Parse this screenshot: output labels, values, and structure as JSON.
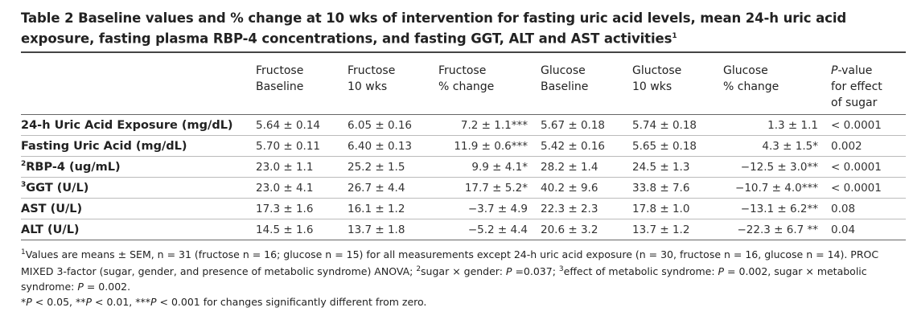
{
  "title": {
    "text": "Table 2 Baseline values and % change at 10 wks of intervention for fasting uric acid levels, mean 24-h uric acid exposure, fasting plasma RBP-4 concentrations, and fasting GGT, ALT and AST activities",
    "note": "1"
  },
  "table": {
    "headers": [
      [
        "Fructose",
        "Baseline"
      ],
      [
        "Fructose",
        "10 wks"
      ],
      [
        "Fructose",
        "% change"
      ],
      [
        "Glucose",
        "Baseline"
      ],
      [
        "Gluctose",
        "10 wks"
      ],
      [
        "Glucose",
        "% change"
      ],
      [
        "P-value",
        "for effect",
        "of sugar"
      ]
    ],
    "rows": [
      {
        "label": "24-h Uric Acid Exposure (mg/dL)",
        "cells": [
          "5.64 ± 0.14",
          "6.05 ± 0.16",
          "7.2 ± 1.1***",
          "5.67 ± 0.18",
          "5.74 ± 0.18",
          "1.3 ± 1.1",
          "< 0.0001"
        ]
      },
      {
        "label": "Fasting Uric Acid (mg/dL)",
        "cells": [
          "5.70 ± 0.11",
          "6.40 ± 0.13",
          "11.9 ± 0.6***",
          "5.42 ± 0.16",
          "5.65 ± 0.18",
          "4.3 ± 1.5*",
          "0.002"
        ]
      },
      {
        "note": "2",
        "label": "RBP-4 (ug/mL)",
        "cells": [
          "23.0 ± 1.1",
          "25.2 ± 1.5",
          "9.9 ± 4.1*",
          "28.2 ± 1.4",
          "24.5 ± 1.3",
          "−12.5 ± 3.0**",
          "< 0.0001"
        ]
      },
      {
        "note": "3",
        "label": "GGT (U/L)",
        "cells": [
          "23.0 ± 4.1",
          "26.7 ± 4.4",
          "17.7 ± 5.2*",
          "40.2 ± 9.6",
          "33.8 ± 7.6",
          "−10.7 ± 4.0***",
          "< 0.0001"
        ]
      },
      {
        "label": "AST (U/L)",
        "cells": [
          "17.3 ± 1.6",
          "16.1 ± 1.2",
          "−3.7 ± 4.9",
          "22.3 ± 2.3",
          "17.8 ± 1.0",
          "−13.1 ± 6.2**",
          "0.08"
        ]
      },
      {
        "label": "ALT (U/L)",
        "cells": [
          "14.5 ± 1.6",
          "13.7 ± 1.8",
          "−5.2 ± 4.4",
          "20.6 ± 3.2",
          "13.7 ± 1.2",
          "−22.3 ± 6.7 **",
          "0.04"
        ]
      }
    ]
  },
  "footnotes": [
    [
      {
        "t": "1",
        "s": "sup"
      },
      {
        "t": "Values are means ± SEM, n = 31 (fructose n = 16; glucose n = 15) for all measurements except 24-h uric acid exposure (n = 30, fructose n = 16, glucose n = 14). PROC MIXED 3-factor (sugar, gender, and presence of metabolic syndrome) ANOVA; "
      },
      {
        "t": "2",
        "s": "sup"
      },
      {
        "t": "sugar × gender: "
      },
      {
        "t": "P",
        "s": "i"
      },
      {
        "t": " =0.037; "
      },
      {
        "t": "3",
        "s": "sup"
      },
      {
        "t": "effect of metabolic syndrome: "
      },
      {
        "t": "P",
        "s": "i"
      },
      {
        "t": " = 0.002, sugar × metabolic syndrome: "
      },
      {
        "t": "P",
        "s": "i"
      },
      {
        "t": " = 0.002."
      }
    ],
    [
      {
        "t": "*"
      },
      {
        "t": "P",
        "s": "i"
      },
      {
        "t": " < 0.05, **"
      },
      {
        "t": "P",
        "s": "i"
      },
      {
        "t": " < 0.01, ***"
      },
      {
        "t": "P",
        "s": "i"
      },
      {
        "t": " < 0.001 for changes significantly different from zero."
      }
    ]
  ]
}
